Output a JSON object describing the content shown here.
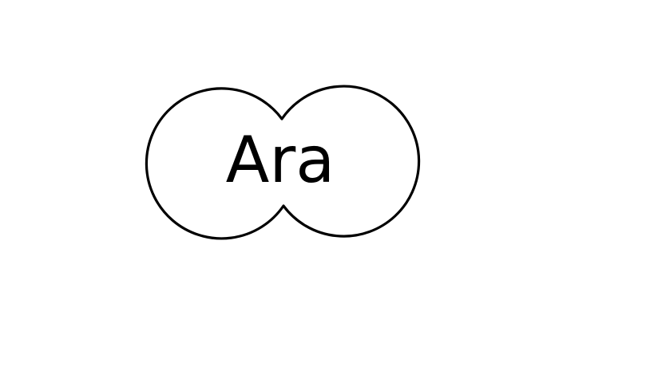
{
  "diagram": {
    "label": "Ara",
    "shape": "overlapping-circles",
    "stroke_color": "#000000",
    "background_color": "#ffffff"
  }
}
